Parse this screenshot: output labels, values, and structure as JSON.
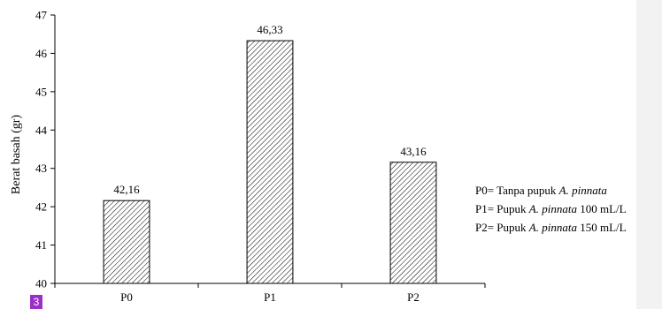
{
  "chart_data": {
    "type": "bar",
    "title": "",
    "xlabel": "",
    "ylabel": "Berat basah (gr)",
    "ylim": [
      40,
      47
    ],
    "yticks": [
      40,
      41,
      42,
      43,
      44,
      45,
      46,
      47
    ],
    "categories": [
      "P0",
      "P1",
      "P2"
    ],
    "values": [
      42.16,
      46.33,
      43.16
    ],
    "data_labels": [
      "42,16",
      "46,33",
      "43,16"
    ],
    "bar_fill": "diagonal hatch",
    "grid": false
  },
  "legend": [
    {
      "prefix": "P0= Tanpa pupuk ",
      "species": "A. pinnata",
      "suffix": ""
    },
    {
      "prefix": "P1= Pupuk ",
      "species": "A. pinnata",
      "suffix": " 100 mL/L"
    },
    {
      "prefix": "P2= Pupuk ",
      "species": "A. pinnata",
      "suffix": " 150 mL/L"
    }
  ],
  "page_badge": "3",
  "colors": {
    "axis": "#000000",
    "hatch": "#000000",
    "badge": "#9b30c9",
    "side_panel": "#f2f2f2"
  }
}
